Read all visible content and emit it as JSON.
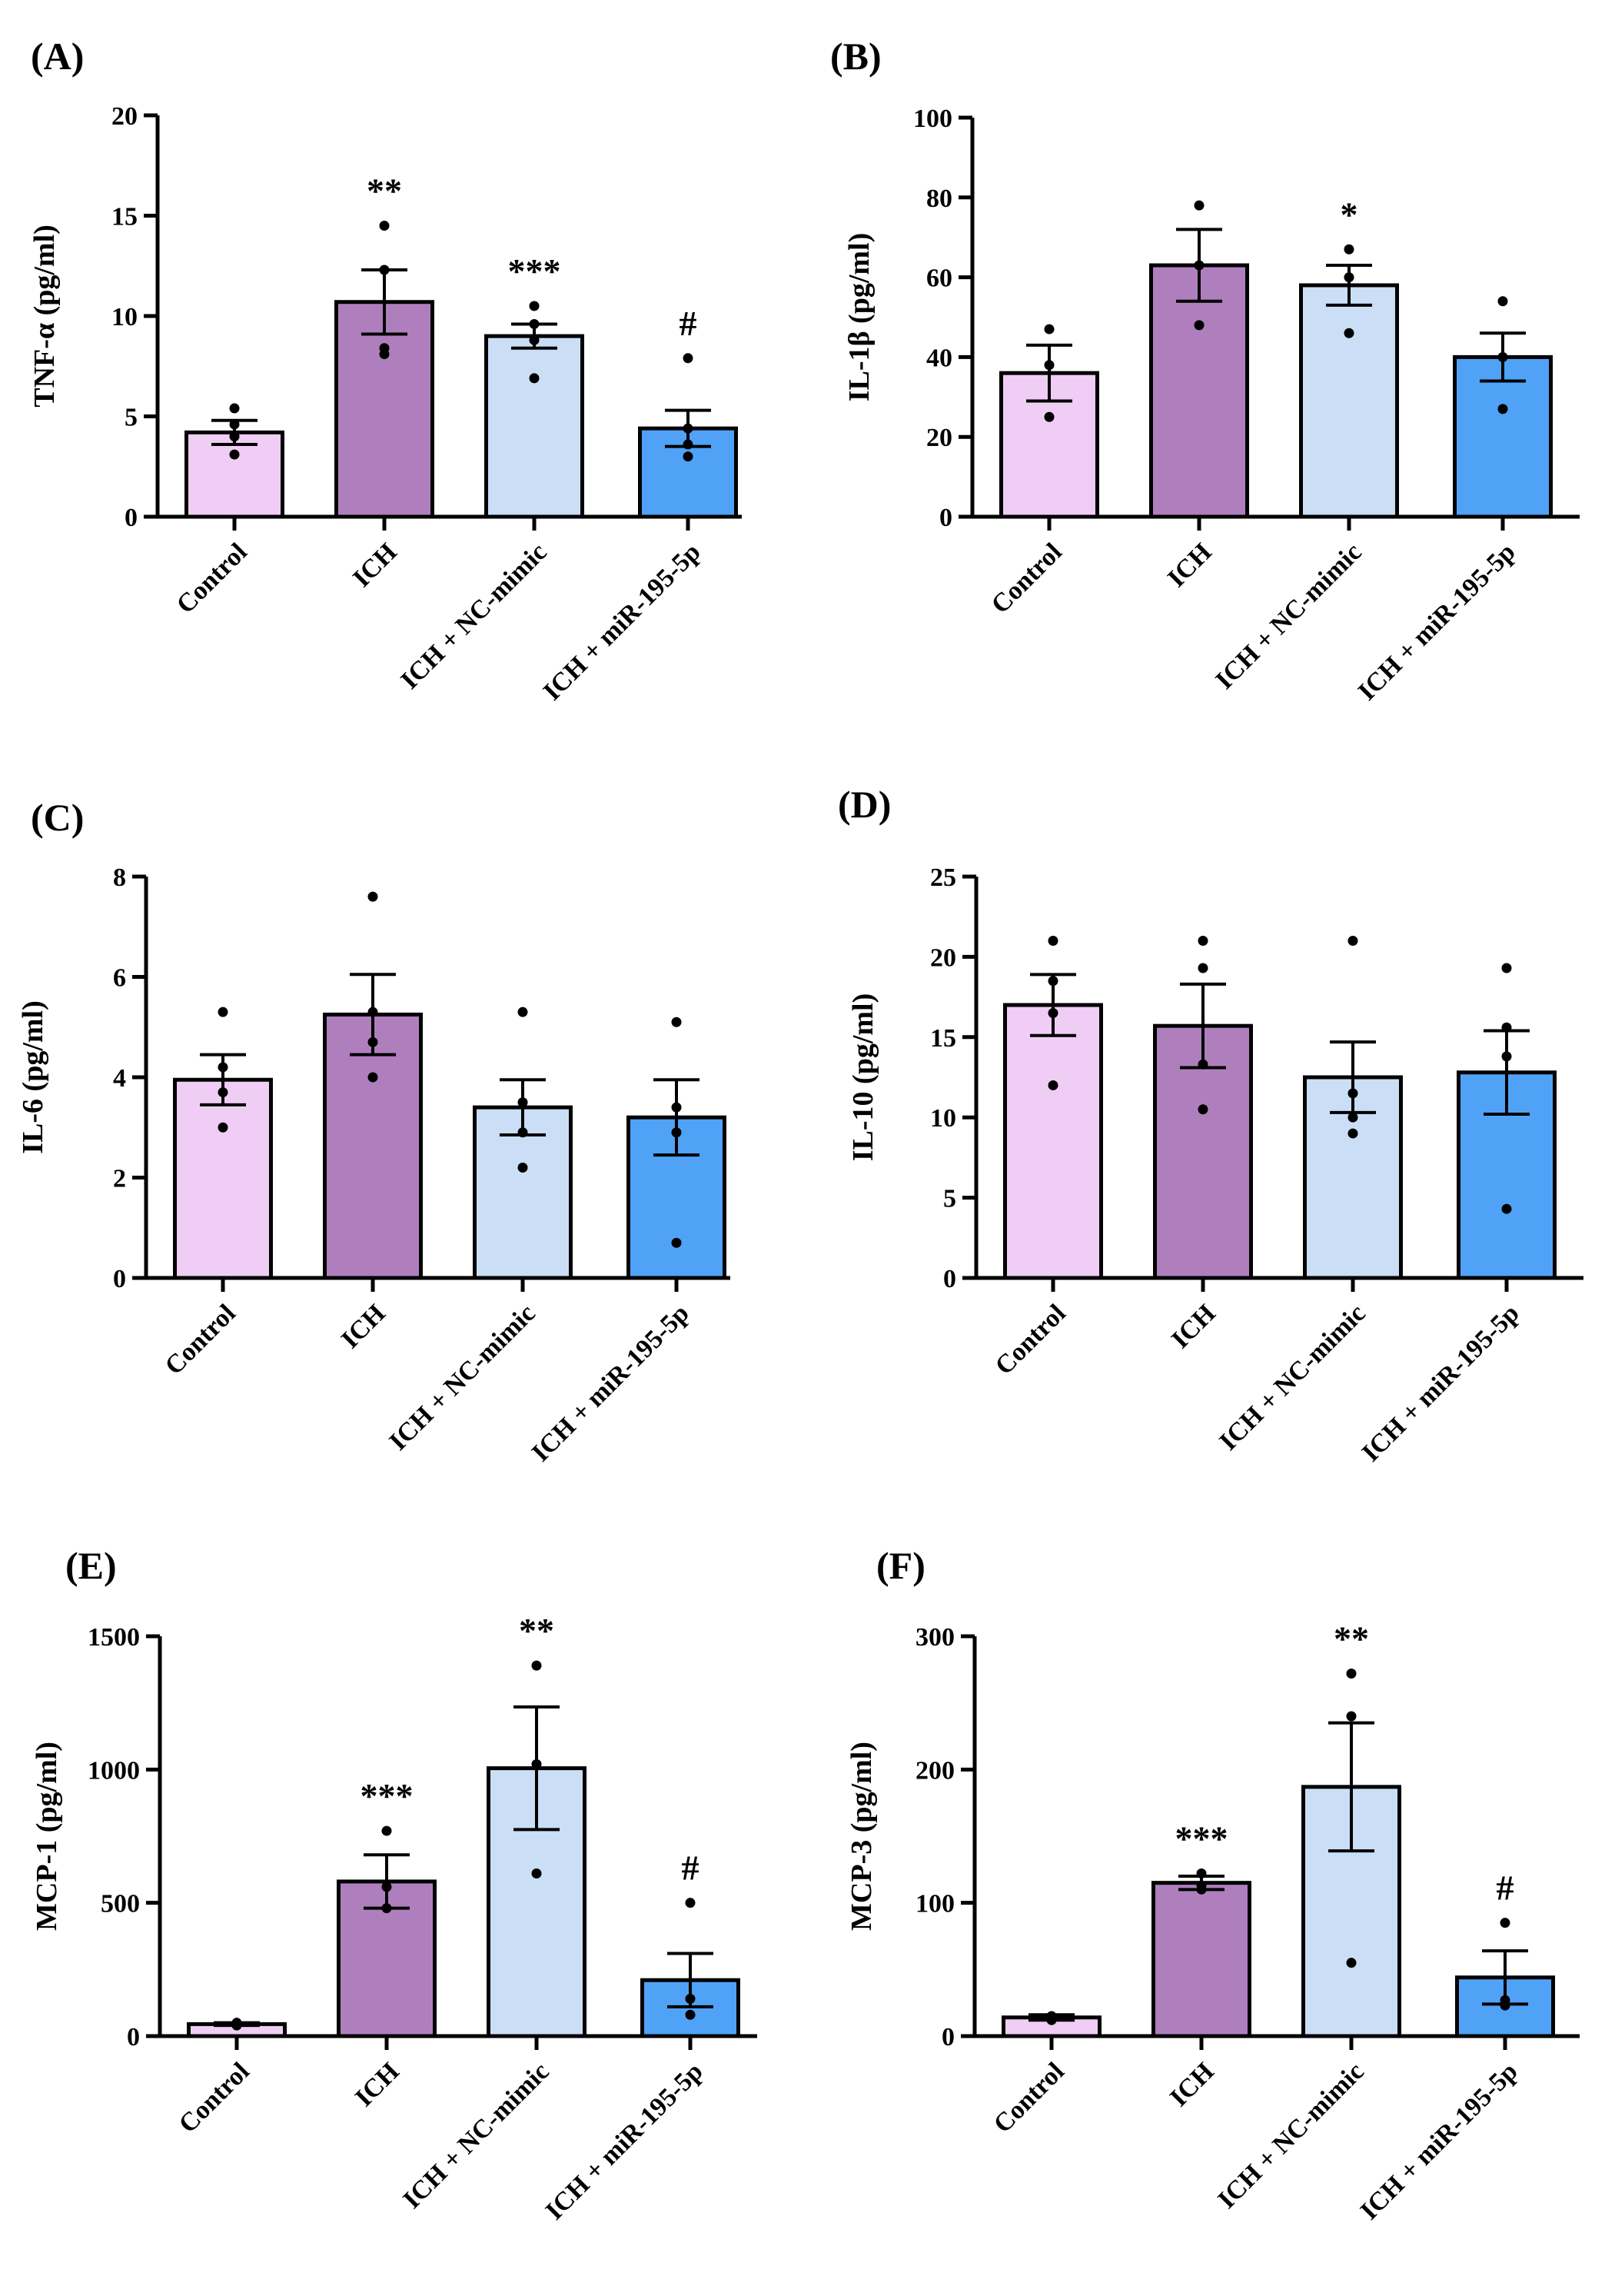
{
  "colors": {
    "Control": "#efcdf5",
    "ICH": "#af7fbd",
    "ICH + NC-mimic": "#cadff6",
    "ICH + miR-195-5p": "#4fa2f5",
    "outline": "#000000"
  },
  "chart_data": [
    {
      "type": "bar",
      "panel_label": "(A)",
      "ylabel": "TNF-α (pg/ml)",
      "ylim": [
        0,
        20
      ],
      "yticks": [
        0,
        5,
        10,
        15,
        20
      ],
      "categories": [
        "Control",
        "ICH",
        "ICH + NC-mimic",
        "ICH + miR-195-5p"
      ],
      "values": [
        4.2,
        10.7,
        9.0,
        4.4
      ],
      "sem": [
        0.6,
        1.6,
        0.6,
        0.9
      ],
      "points": [
        [
          5.4,
          4.6,
          4.0,
          3.1
        ],
        [
          14.5,
          12.3,
          8.4,
          8.1
        ],
        [
          10.5,
          9.6,
          8.8,
          6.9
        ],
        [
          7.9,
          4.4,
          3.6,
          3.0
        ]
      ],
      "significance": [
        "",
        "**",
        "***",
        "#"
      ]
    },
    {
      "type": "bar",
      "panel_label": "(B)",
      "ylabel": "IL-1β (pg/ml)",
      "ylim": [
        0,
        100
      ],
      "yticks": [
        0,
        20,
        40,
        60,
        80,
        100
      ],
      "categories": [
        "Control",
        "ICH",
        "ICH + NC-mimic",
        "ICH + miR-195-5p"
      ],
      "values": [
        36,
        63,
        58,
        40
      ],
      "sem": [
        7,
        9,
        5,
        6
      ],
      "points": [
        [
          47,
          38,
          25
        ],
        [
          78,
          63,
          48
        ],
        [
          67,
          60,
          46
        ],
        [
          54,
          40,
          27
        ]
      ],
      "significance": [
        "",
        "",
        "*",
        ""
      ]
    },
    {
      "type": "bar",
      "panel_label": "(C)",
      "ylabel": "IL-6 (pg/ml)",
      "ylim": [
        0,
        8
      ],
      "yticks": [
        0,
        2,
        4,
        6,
        8
      ],
      "categories": [
        "Control",
        "ICH",
        "ICH + NC-mimic",
        "ICH + miR-195-5p"
      ],
      "values": [
        3.95,
        5.25,
        3.4,
        3.2
      ],
      "sem": [
        0.5,
        0.8,
        0.55,
        0.75
      ],
      "points": [
        [
          5.3,
          4.2,
          3.7,
          3.0
        ],
        [
          7.6,
          5.3,
          4.7,
          4.0
        ],
        [
          5.3,
          3.5,
          2.9,
          2.2
        ],
        [
          5.1,
          3.4,
          2.9,
          0.7
        ]
      ],
      "significance": [
        "",
        "",
        "",
        ""
      ]
    },
    {
      "type": "bar",
      "panel_label": "(D)",
      "ylabel": "IL-10 (pg/ml)",
      "ylim": [
        0,
        25
      ],
      "yticks": [
        0,
        5,
        10,
        15,
        20,
        25
      ],
      "categories": [
        "Control",
        "ICH",
        "ICH + NC-mimic",
        "ICH + miR-195-5p"
      ],
      "values": [
        17.0,
        15.7,
        12.5,
        12.8
      ],
      "sem": [
        1.9,
        2.6,
        2.2,
        2.6
      ],
      "points": [
        [
          21.0,
          18.5,
          16.5,
          12.0
        ],
        [
          21.0,
          19.3,
          13.3,
          10.5
        ],
        [
          21.0,
          11.5,
          10.0,
          9.0
        ],
        [
          19.3,
          15.6,
          13.8,
          4.3
        ]
      ],
      "significance": [
        "",
        "",
        "",
        ""
      ]
    },
    {
      "type": "bar",
      "panel_label": "(E)",
      "ylabel": "MCP-1 (pg/ml)",
      "ylim": [
        0,
        1500
      ],
      "yticks": [
        0,
        500,
        1000,
        1500
      ],
      "categories": [
        "Control",
        "ICH",
        "ICH + NC-mimic",
        "ICH + miR-195-5p"
      ],
      "values": [
        45,
        580,
        1005,
        210
      ],
      "sem": [
        5,
        100,
        230,
        100
      ],
      "points": [
        [
          50,
          42,
          40
        ],
        [
          770,
          560,
          480
        ],
        [
          1390,
          1020,
          610
        ],
        [
          500,
          140,
          80
        ]
      ],
      "significance": [
        "",
        "***",
        "**",
        "#"
      ]
    },
    {
      "type": "bar",
      "panel_label": "(F)",
      "ylabel": "MCP-3 (pg/ml)",
      "ylim": [
        0,
        300
      ],
      "yticks": [
        0,
        100,
        200,
        300
      ],
      "categories": [
        "Control",
        "ICH",
        "ICH + NC-mimic",
        "ICH + miR-195-5p"
      ],
      "values": [
        14,
        115,
        187,
        44
      ],
      "sem": [
        2,
        5,
        48,
        20
      ],
      "points": [
        [
          15,
          13,
          12
        ],
        [
          122,
          113,
          110
        ],
        [
          272,
          240,
          55
        ],
        [
          85,
          27,
          23
        ]
      ],
      "significance": [
        "",
        "***",
        "**",
        "#"
      ]
    }
  ]
}
